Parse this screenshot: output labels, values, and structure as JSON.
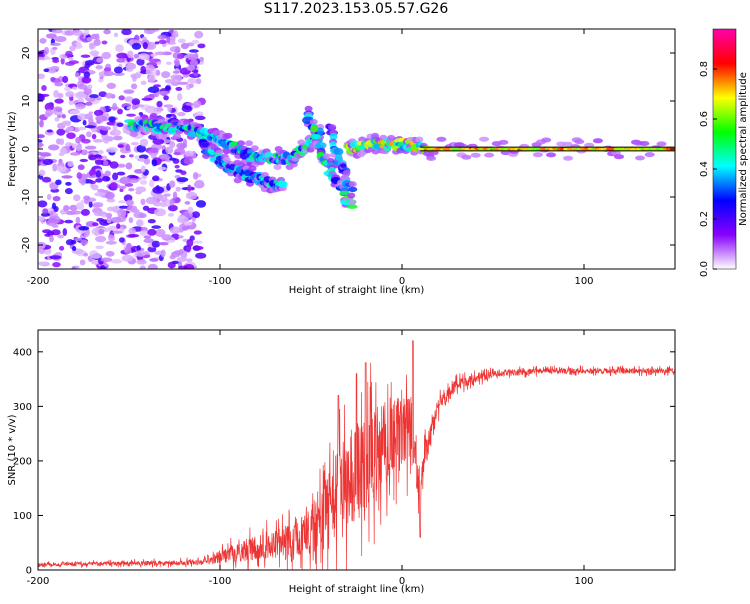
{
  "figure_title": "S117.2023.153.05.57.G26",
  "chart_data": [
    {
      "type": "heatmap",
      "xlabel": "Height of straight line (km)",
      "ylabel": "Frequency (Hz)",
      "xlim": [
        -200,
        150
      ],
      "ylim": [
        -25,
        25
      ],
      "x_ticks": [
        -200,
        -100,
        0,
        100
      ],
      "y_ticks": [
        -20,
        -10,
        0,
        10,
        20
      ],
      "colorbar": {
        "label": "Normalized spectral amplitude",
        "range": [
          0,
          1
        ],
        "ticks": [
          "0.0",
          "0.2",
          "0.4",
          "0.6",
          "0.8"
        ],
        "colormap": [
          "#ffffff",
          "#8800ff",
          "#0000ff",
          "#00ffff",
          "#00ff00",
          "#ffff00",
          "#ff0000",
          "#ff00aa"
        ]
      },
      "features": [
        {
          "name": "noise",
          "x": [
            -200,
            -110
          ],
          "freq": [
            -25,
            25
          ],
          "amp": 0.3
        },
        {
          "name": "track",
          "points": [
            [
              -150,
              5
            ],
            [
              -120,
              4.5
            ],
            [
              -100,
              2
            ],
            [
              -80,
              -2
            ],
            [
              -60,
              -2
            ],
            [
              -45,
              3
            ]
          ],
          "amp": 0.5
        },
        {
          "name": "branch",
          "points": [
            [
              -110,
              1
            ],
            [
              -95,
              -4
            ],
            [
              -80,
              -6
            ],
            [
              -65,
              -8
            ]
          ],
          "amp": 0.45
        },
        {
          "name": "dive",
          "points": [
            [
              -52,
              7
            ],
            [
              -40,
              -4
            ],
            [
              -28,
              -12
            ]
          ],
          "amp": 0.55
        },
        {
          "name": "dive2",
          "points": [
            [
              -40,
              5
            ],
            [
              -35,
              -2
            ],
            [
              -28,
              -8
            ]
          ],
          "amp": 0.4
        },
        {
          "name": "converge",
          "points": [
            [
              -30,
              0
            ],
            [
              -15,
              1
            ],
            [
              0,
              1
            ],
            [
              15,
              0
            ]
          ],
          "amp": 0.7
        },
        {
          "name": "carrier",
          "points": [
            [
              10,
              0
            ],
            [
              150,
              0
            ]
          ],
          "amp": 0.85
        }
      ]
    },
    {
      "type": "line",
      "xlabel": "Height of straight line (km)",
      "ylabel": "SNR (10 * v/v)",
      "xlim": [
        -200,
        150
      ],
      "ylim": [
        0,
        440
      ],
      "x_ticks": [
        -200,
        -100,
        0,
        100
      ],
      "y_ticks": [
        0,
        100,
        200,
        300,
        400
      ],
      "color": "#ee3333",
      "envelope": {
        "x": [
          -200,
          -150,
          -110,
          -100,
          -80,
          -60,
          -45,
          -35,
          -25,
          -15,
          -5,
          5,
          10,
          12,
          20,
          30,
          50,
          80,
          150
        ],
        "mean": [
          10,
          12,
          14,
          25,
          40,
          55,
          90,
          140,
          180,
          210,
          250,
          260,
          120,
          200,
          300,
          340,
          360,
          365,
          365
        ],
        "spread": [
          6,
          8,
          10,
          25,
          45,
          60,
          120,
          180,
          180,
          180,
          140,
          120,
          80,
          60,
          30,
          20,
          12,
          10,
          10
        ]
      },
      "peaks": [
        [
          -35,
          320
        ],
        [
          -25,
          360
        ],
        [
          -20,
          380
        ],
        [
          6,
          420
        ],
        [
          10,
          60
        ]
      ]
    }
  ]
}
